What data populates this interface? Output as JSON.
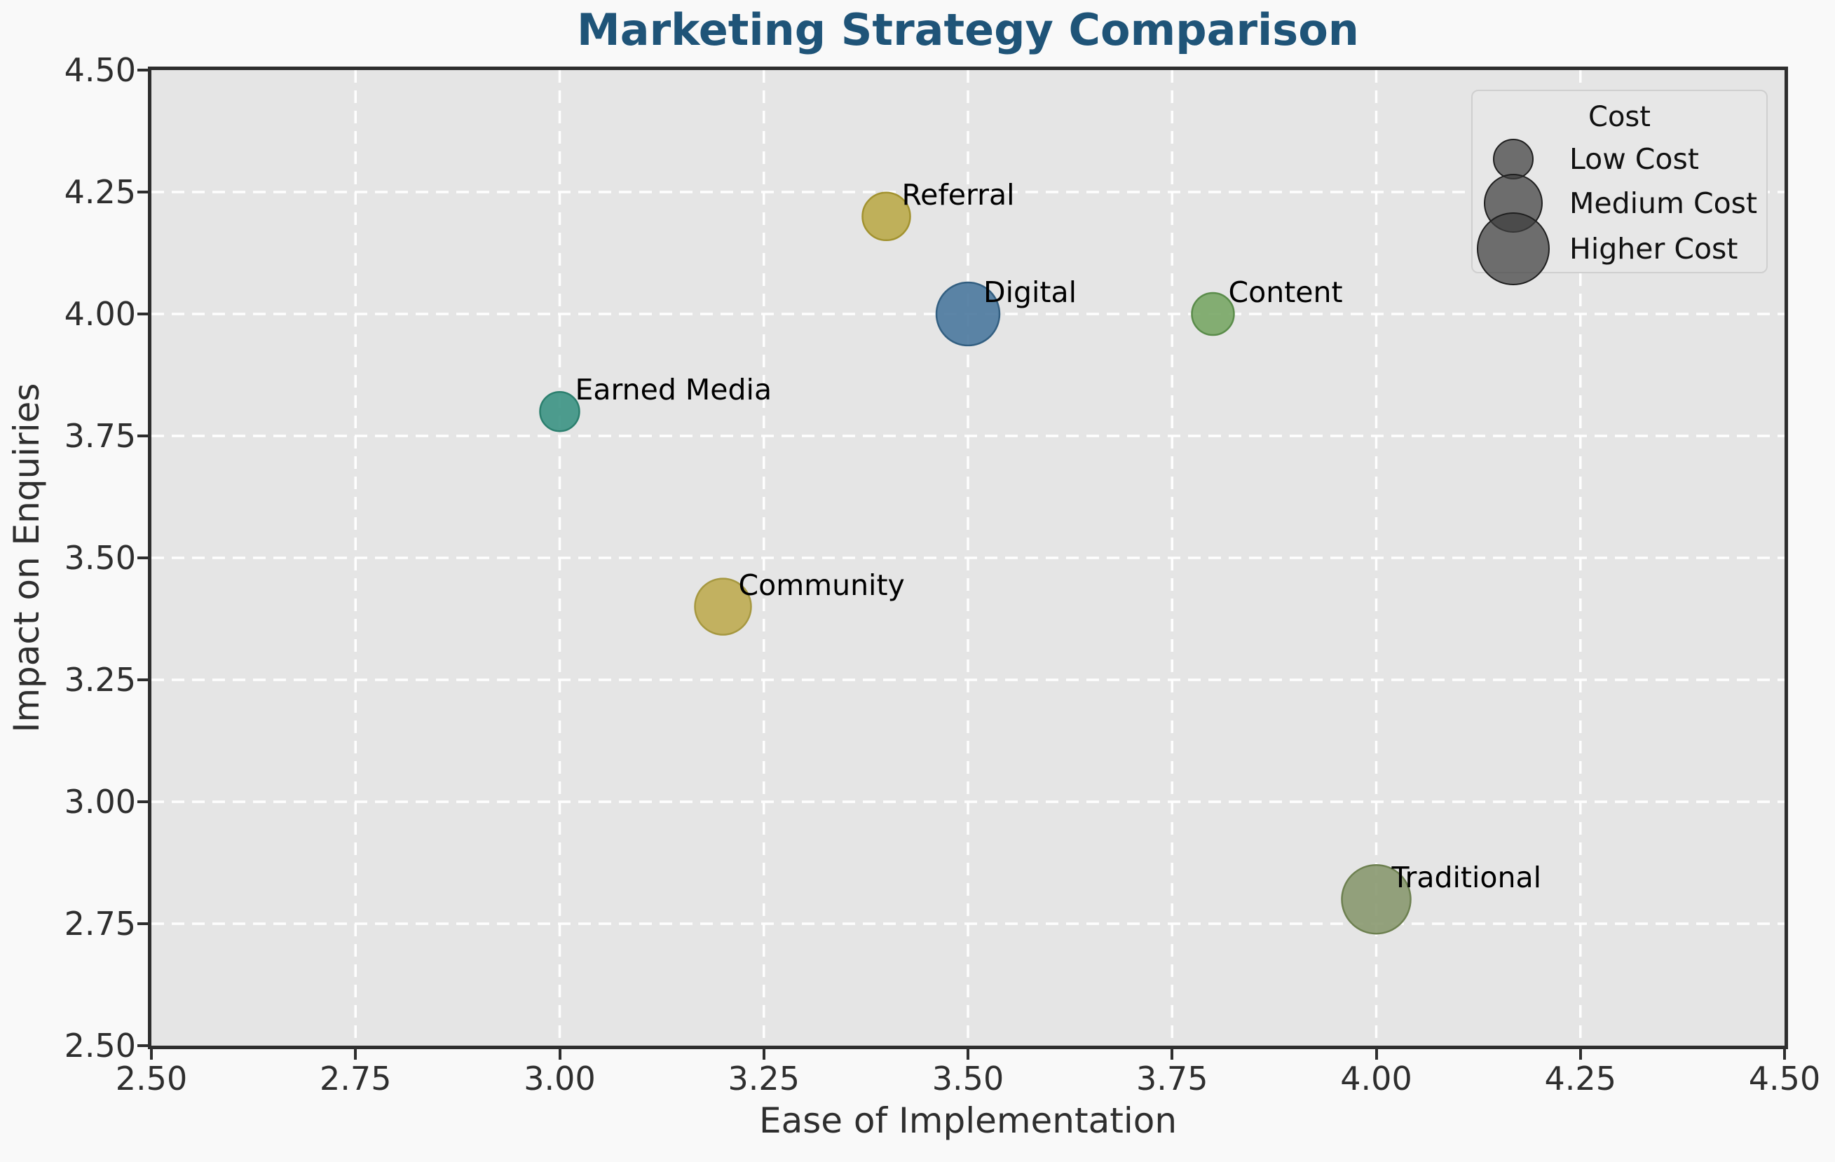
{
  "chart_data": {
    "type": "scatter",
    "title": "Marketing Strategy Comparison",
    "xlabel": "Ease of Implementation",
    "ylabel": "Impact on Enquiries",
    "xlim": [
      2.5,
      4.5
    ],
    "ylim": [
      2.5,
      4.5
    ],
    "xticks": [
      "2.50",
      "2.75",
      "3.00",
      "3.25",
      "3.50",
      "3.75",
      "4.00",
      "4.25",
      "4.50"
    ],
    "yticks": [
      "2.50",
      "2.75",
      "3.00",
      "3.25",
      "3.50",
      "3.75",
      "4.00",
      "4.25",
      "4.50"
    ],
    "grid": "white dashed, on",
    "legend_position": "upper right",
    "points": [
      {
        "label": "Referral",
        "x": 3.4,
        "y": 4.2,
        "cost": "Medium Cost",
        "radius_px": 34,
        "color": "#bcab4e",
        "edge": "#a2922f"
      },
      {
        "label": "Digital",
        "x": 3.5,
        "y": 4.0,
        "cost": "Higher Cost",
        "radius_px": 45,
        "color": "#4e7ba0",
        "edge": "#335f81"
      },
      {
        "label": "Content",
        "x": 3.8,
        "y": 4.0,
        "cost": "Low Cost",
        "radius_px": 30,
        "color": "#7ba868",
        "edge": "#5a8c4a"
      },
      {
        "label": "Earned Media",
        "x": 3.0,
        "y": 3.8,
        "cost": "Low Cost",
        "radius_px": 28,
        "color": "#3f9585",
        "edge": "#2b7f6e"
      },
      {
        "label": "Community",
        "x": 3.2,
        "y": 3.4,
        "cost": "Medium Cost",
        "radius_px": 40,
        "color": "#bfad55",
        "edge": "#a69840"
      },
      {
        "label": "Traditional",
        "x": 4.0,
        "y": 2.8,
        "cost": "Higher Cost",
        "radius_px": 49,
        "color": "#8b9a72",
        "edge": "#6d8050"
      }
    ],
    "legend": {
      "title": "Cost",
      "entries": [
        {
          "label": "Low Cost",
          "radius_px": 29
        },
        {
          "label": "Medium Cost",
          "radius_px": 42
        },
        {
          "label": "Higher Cost",
          "radius_px": 52
        }
      ]
    },
    "colors": {
      "figure_background": "#f9f9f9",
      "plot_background": "#e5e5e5",
      "grid_color": "#ffffff",
      "spine_color": "#2e2e2e",
      "title_color": "#1f5478",
      "tick_label_color": "#2e2e2e",
      "annotation_color": "#000000",
      "legend_swatch_color": "#3e3e3e"
    }
  }
}
